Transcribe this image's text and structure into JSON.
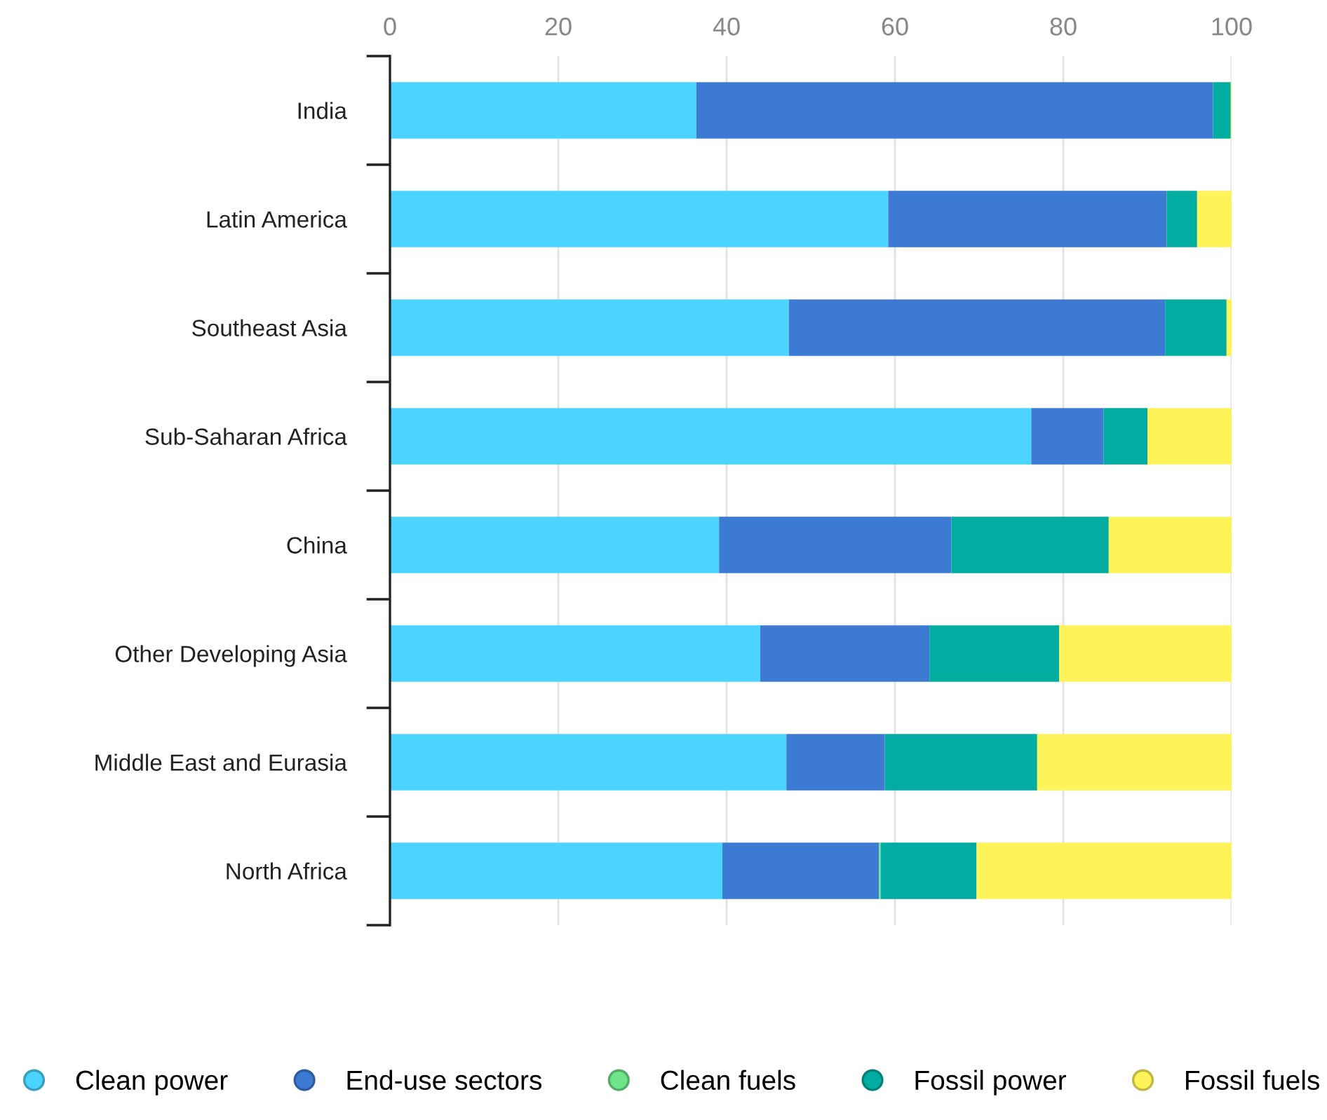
{
  "chart_data": {
    "type": "bar",
    "orientation": "horizontal",
    "stacked": true,
    "categories": [
      "India",
      "Latin America",
      "Southeast Asia",
      "Sub-Saharan Africa",
      "China",
      "Other Developing Asia",
      "Middle East and Eurasia",
      "North Africa"
    ],
    "series": [
      {
        "name": "Clean power",
        "color": "#4ad4ff",
        "values": [
          36.4,
          59.2,
          47.4,
          76.2,
          39.1,
          44.0,
          47.1,
          39.5
        ]
      },
      {
        "name": "End-use sectors",
        "color": "#3d7ad4",
        "values": [
          61.4,
          33.1,
          44.7,
          8.6,
          27.6,
          20.1,
          11.7,
          18.6
        ]
      },
      {
        "name": "Clean fuels",
        "color": "#6ee58a",
        "values": [
          0,
          0,
          0,
          0,
          0,
          0,
          0,
          0.2
        ]
      },
      {
        "name": "Fossil power",
        "color": "#00ada0",
        "values": [
          2.1,
          3.6,
          7.3,
          5.2,
          18.7,
          15.4,
          18.1,
          11.4
        ]
      },
      {
        "name": "Fossil fuels",
        "color": "#fff35a",
        "values": [
          0.1,
          4.1,
          0.6,
          10.0,
          14.6,
          20.5,
          23.1,
          30.3
        ]
      }
    ],
    "xlim": [
      0,
      100
    ],
    "xticks": [
      0,
      20,
      40,
      60,
      80,
      100
    ],
    "grid": "x",
    "legend": "bottom"
  }
}
